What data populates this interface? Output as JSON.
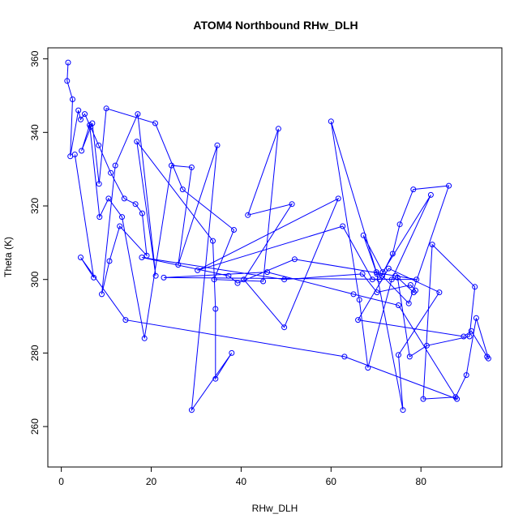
{
  "chart_data": {
    "type": "line",
    "title": "ATOM4 Northbound RHw_DLH",
    "xlabel": "RHw_DLH",
    "ylabel": "Theta (K)",
    "xlim": [
      -3,
      98
    ],
    "ylim": [
      249,
      363
    ],
    "xticks": [
      0,
      20,
      40,
      60,
      80
    ],
    "yticks": [
      260,
      280,
      300,
      320,
      340,
      360
    ],
    "xtick_labels": [
      "0",
      "20",
      "40",
      "60",
      "80"
    ],
    "ytick_labels": [
      "260",
      "280",
      "300",
      "320",
      "340",
      "360"
    ],
    "grid": false,
    "legend": "none",
    "series_color": "#0000ff",
    "marker": "open-circle",
    "series": [
      {
        "x": [
          1.5,
          1.3,
          2.5,
          2.0,
          3.8,
          4.3,
          5.2,
          6.5,
          8.3,
          11.0,
          14.0,
          16.5,
          18.0,
          19.0,
          13.0,
          10.7,
          9.0,
          12.0,
          17.0,
          21.0,
          16.8,
          33.7,
          34.3,
          34.3,
          37.9,
          29.0,
          34.7,
          26.0,
          29.0,
          24.5,
          18.5,
          13.5,
          10.5,
          8.5,
          6.3,
          4.5,
          6.9,
          8.4,
          10.0,
          20.9,
          27.0,
          38.4,
          34.0,
          44.9,
          48.3,
          41.5,
          51.3,
          40.6,
          49.6,
          61.6,
          30.3,
          62.6,
          69.2,
          70.8,
          73.7,
          75.3,
          78.3,
          86.2,
          77.3,
          71.4,
          70.2,
          67.2,
          71.5,
          82.2,
          73.5,
          68.2,
          66.3,
          60.0,
          70.1,
          76.0,
          75.0,
          84.1,
          72.8,
          66.0,
          89.5,
          91.2,
          94.7,
          95.0,
          92.3,
          90.1,
          87.7,
          80.5,
          82.5,
          92.0,
          90.8,
          81.3,
          77.5,
          74.8,
          78.4,
          78.8,
          77.7,
          70.2,
          67.0,
          49.6,
          17.9,
          37.2,
          39.2,
          51.9,
          74.3,
          79.0,
          22.8,
          45.8,
          65.0,
          75.0,
          88.0,
          63.0,
          14.3,
          4.3,
          7.2,
          3.0
        ],
        "y": [
          359.0,
          354.0,
          349.0,
          333.5,
          346.0,
          343.5,
          345.0,
          341.5,
          336.5,
          329.0,
          322.0,
          320.5,
          318.0,
          306.5,
          314.5,
          305.0,
          296.0,
          331.0,
          345.0,
          301.0,
          337.5,
          310.5,
          292.0,
          273.0,
          280.0,
          264.5,
          336.5,
          304.0,
          330.5,
          331.0,
          284.0,
          317.0,
          322.0,
          317.0,
          342.0,
          335.0,
          342.5,
          326.0,
          346.5,
          342.5,
          324.5,
          313.5,
          300.0,
          299.5,
          341.0,
          317.5,
          320.5,
          300.0,
          287.0,
          322.0,
          302.5,
          314.5,
          300.0,
          300.0,
          307.0,
          315.0,
          324.5,
          325.5,
          293.5,
          301.0,
          301.5,
          312.0,
          302.0,
          323.0,
          300.0,
          276.0,
          294.5,
          343.0,
          302.0,
          264.5,
          279.5,
          296.5,
          303.0,
          289.0,
          284.5,
          286.0,
          279.0,
          278.5,
          289.5,
          274.0,
          268.0,
          267.5,
          309.5,
          298.0,
          284.5,
          282.0,
          279.0,
          300.5,
          296.5,
          297.0,
          298.5,
          296.5,
          301.5,
          300.0,
          306.0,
          301.0,
          299.0,
          305.5,
          301.0,
          300.0,
          300.5,
          302.0,
          296.0,
          293.0,
          267.5,
          279.0,
          289.0,
          306.0,
          300.5,
          334.0
        ]
      }
    ]
  }
}
